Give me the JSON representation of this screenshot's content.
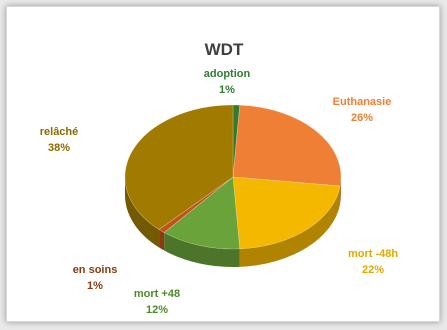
{
  "chart_data": {
    "type": "pie",
    "title": "WDT",
    "slices": [
      {
        "name": "adoption",
        "value": 1,
        "label": "1%",
        "color": "#2e7d32",
        "label_color": "#2e7d32"
      },
      {
        "name": "Euthanasie",
        "value": 26,
        "label": "26%",
        "color": "#ef7f34",
        "label_color": "#ef7f34"
      },
      {
        "name": "mort -48h",
        "value": 22,
        "label": "22%",
        "color": "#f5b800",
        "label_color": "#e0a800"
      },
      {
        "name": "mort +48",
        "value": 12,
        "label": "12%",
        "color": "#6aa33a",
        "label_color": "#4f8a2a"
      },
      {
        "name": "en soins",
        "value": 1,
        "label": "1%",
        "color": "#c4501a",
        "label_color": "#8a3b12"
      },
      {
        "name": "relâché",
        "value": 38,
        "label": "38%",
        "color": "#a07b00",
        "label_color": "#8a6a00"
      }
    ],
    "legend": "none",
    "style": "3d-pie"
  }
}
